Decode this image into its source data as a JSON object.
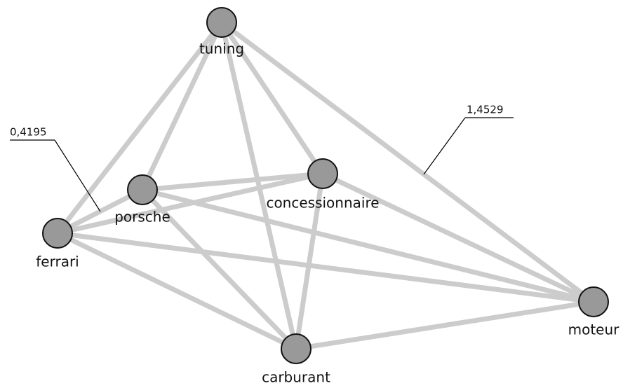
{
  "nodes": [
    {
      "label": "tuning"
    },
    {
      "label": "porsche"
    },
    {
      "label": "concessionnaire"
    },
    {
      "label": "ferrari"
    },
    {
      "label": "moteur"
    },
    {
      "label": "carburant"
    }
  ],
  "annotations": [
    {
      "text": "0,4195"
    },
    {
      "text": "1,4529"
    }
  ]
}
